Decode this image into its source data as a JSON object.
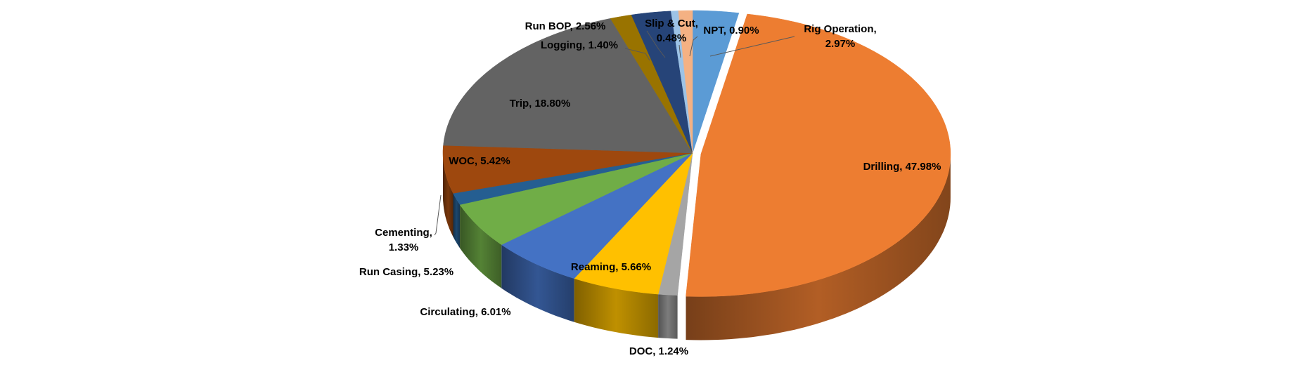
{
  "chart_data": {
    "type": "pie",
    "style": "3d-exploded",
    "slices": [
      {
        "name": "Rig Operation",
        "label": "Rig Operation, 2.97%",
        "value": 2.97,
        "color": "#5B9BD5"
      },
      {
        "name": "Drilling",
        "label": "Drilling, 47.98%",
        "value": 47.98,
        "color": "#ED7D31"
      },
      {
        "name": "DOC",
        "label": "DOC, 1.24%",
        "value": 1.24,
        "color": "#A5A5A5"
      },
      {
        "name": "Reaming",
        "label": "Reaming, 5.66%",
        "value": 5.66,
        "color": "#FFC000"
      },
      {
        "name": "Circulating",
        "label": "Circulating, 6.01%",
        "value": 6.01,
        "color": "#4472C4"
      },
      {
        "name": "Run Casing",
        "label": "Run Casing, 5.23%",
        "value": 5.23,
        "color": "#70AD47"
      },
      {
        "name": "Cementing",
        "label": "Cementing, 1.33%",
        "value": 1.33,
        "color": "#255E91"
      },
      {
        "name": "WOC",
        "label": "WOC, 5.42%",
        "value": 5.42,
        "color": "#9E480E"
      },
      {
        "name": "Trip",
        "label": "Trip, 18.80%",
        "value": 18.8,
        "color": "#636363"
      },
      {
        "name": "Logging",
        "label": "Logging, 1.40%",
        "value": 1.4,
        "color": "#997300"
      },
      {
        "name": "Run BOP",
        "label": "Run BOP, 2.56%",
        "value": 2.56,
        "color": "#264478"
      },
      {
        "name": "Slip & Cut",
        "label": "Slip & Cut, 0.48%",
        "value": 0.48,
        "color": "#9DC3E6"
      },
      {
        "name": "NPT",
        "label": "NPT, 0.90%",
        "value": 0.9,
        "color": "#F4B183"
      }
    ],
    "title": "",
    "legend": "none"
  }
}
